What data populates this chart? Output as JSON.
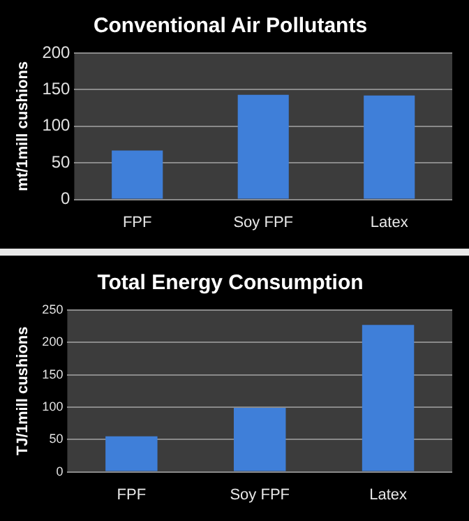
{
  "chart_data": [
    {
      "type": "bar",
      "title": "Conventional Air Pollutants",
      "ylabel": "mt/1mill cushions",
      "categories": [
        "FPF",
        "Soy FPF",
        "Latex"
      ],
      "values": [
        67,
        143,
        142
      ],
      "color": "#3f7fd9",
      "ylim": [
        0,
        200
      ],
      "yticks": [
        0,
        50,
        100,
        150,
        200
      ],
      "grid": "y",
      "legend": false
    },
    {
      "type": "bar",
      "title": "Total Energy Consumption",
      "ylabel": "TJ/1mill cushions",
      "categories": [
        "FPF",
        "Soy FPF",
        "Latex"
      ],
      "values": [
        55,
        99,
        227
      ],
      "color": "#3f7fd9",
      "ylim": [
        0,
        250
      ],
      "yticks": [
        0,
        50,
        100,
        150,
        200,
        250
      ],
      "grid": "y",
      "legend": false
    }
  ]
}
